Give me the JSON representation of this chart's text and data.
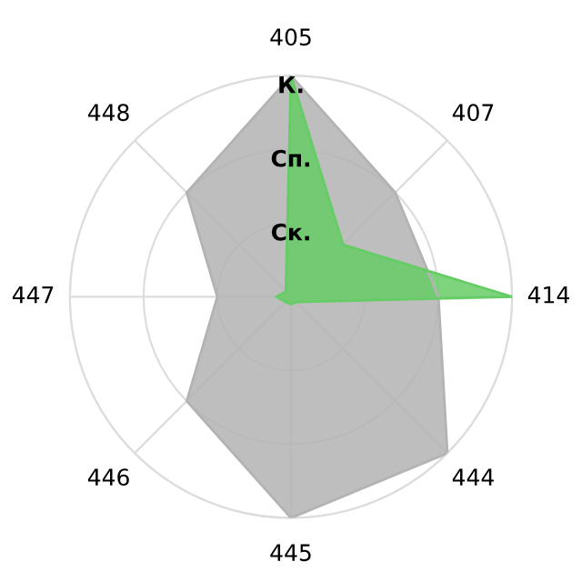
{
  "chart_data": {
    "type": "radar",
    "categories": [
      "405",
      "407",
      "414",
      "444",
      "445",
      "446",
      "447",
      "448"
    ],
    "series": [
      {
        "color": "#b3b3b3",
        "values": [
          3,
          2,
          2,
          3,
          3,
          2,
          1,
          2
        ]
      },
      {
        "color": "#66cc66",
        "values": [
          3,
          1,
          3,
          0.1,
          0.1,
          0.1,
          0.2,
          0.1
        ]
      }
    ],
    "ylim": [
      0,
      3
    ],
    "yticks": [
      {
        "value": 1,
        "label": "Ск."
      },
      {
        "value": 2,
        "label": "Сп."
      },
      {
        "value": 3,
        "label": "К."
      }
    ],
    "grid": true
  }
}
